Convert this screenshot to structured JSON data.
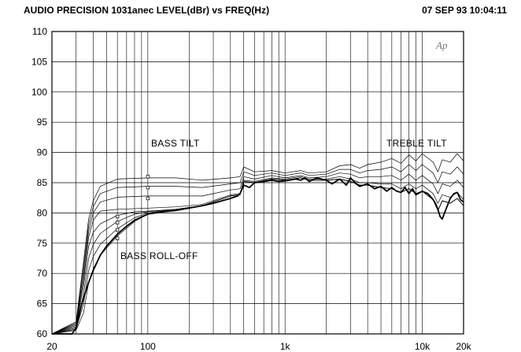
{
  "header": {
    "title": "AUDIO PRECISION 1031anec  LEVEL(dBr)  vs  FREQ(Hz)",
    "timestamp": "07 SEP 93 10:04:11"
  },
  "logo_text": "Ap",
  "chart_data": {
    "type": "line",
    "title": "AUDIO PRECISION 1031anec  LEVEL(dBr)  vs  FREQ(Hz)",
    "xlabel": "",
    "ylabel": "",
    "xscale": "log",
    "xlim": [
      20,
      20000
    ],
    "ylim": [
      60,
      110
    ],
    "grid": true,
    "x_tick_labels": [
      "20",
      "100",
      "1k",
      "10k",
      "20k"
    ],
    "y_ticks": [
      110,
      105,
      100,
      95,
      90,
      85,
      80,
      75,
      70,
      65,
      60
    ],
    "annotations": [
      {
        "text": "BASS  TILT"
      },
      {
        "text": "TREBLE  TILT"
      },
      {
        "text": "BASS  ROLL-OFF"
      }
    ],
    "series": [
      {
        "x": [
          20,
          30,
          34,
          37,
          40,
          45,
          60,
          100,
          160,
          250,
          400,
          470,
          500,
          600,
          800,
          1000,
          1300,
          1500,
          2000,
          2500,
          3000,
          3500,
          4000,
          5000,
          6000,
          7000,
          8000,
          9000,
          10000,
          12000,
          13000,
          14000,
          16000,
          18000,
          20000
        ],
        "y": [
          60,
          62,
          72,
          79,
          82,
          84.4,
          85.6,
          85.8,
          85.8,
          85.4,
          85.8,
          86,
          87.6,
          86.8,
          87,
          86.6,
          87,
          86.6,
          86.8,
          87.8,
          88,
          87.4,
          88,
          88.4,
          89,
          88.2,
          89.6,
          88.6,
          89.8,
          88.4,
          86.8,
          88.8,
          88.4,
          89.8,
          88.6
        ]
      },
      {
        "x": [
          20,
          30,
          34,
          37,
          40,
          45,
          60,
          100,
          160,
          250,
          400,
          470,
          500,
          600,
          800,
          1000,
          1300,
          1500,
          2000,
          2500,
          3000,
          3500,
          4000,
          5000,
          6000,
          7000,
          8000,
          9000,
          10000,
          12000,
          13000,
          14000,
          16000,
          18000,
          20000
        ],
        "y": [
          60,
          61.8,
          71,
          78,
          81,
          83.2,
          84.2,
          84.4,
          84.4,
          84.2,
          84.8,
          85,
          86.8,
          86.2,
          86.6,
          86.2,
          86.6,
          86.2,
          86.4,
          87.2,
          87.2,
          86.6,
          87,
          87.2,
          87.6,
          86.8,
          88,
          87,
          88,
          86.6,
          85,
          86.8,
          86.4,
          87.6,
          86.4
        ]
      },
      {
        "x": [
          20,
          30,
          34,
          37,
          40,
          45,
          60,
          100,
          160,
          250,
          400,
          470,
          500,
          600,
          800,
          1000,
          1300,
          1500,
          2000,
          2500,
          3000,
          3500,
          4000,
          5000,
          6000,
          7000,
          8000,
          9000,
          10000,
          12000,
          13000,
          14000,
          16000,
          18000,
          20000
        ],
        "y": [
          60,
          61.6,
          70,
          77,
          80,
          81.8,
          82.6,
          82.8,
          82.8,
          82.8,
          83.8,
          84,
          86,
          85.6,
          86.2,
          85.8,
          86.2,
          85.8,
          86,
          86.6,
          86.4,
          85.8,
          86,
          86,
          86.2,
          85.4,
          86.4,
          85.4,
          86.2,
          84.8,
          83.2,
          84.8,
          84.4,
          85.4,
          84.2
        ]
      },
      {
        "x": [
          20,
          30,
          34,
          37,
          40,
          45,
          60,
          100,
          160,
          250,
          400,
          470,
          500,
          600,
          800,
          1000,
          1300,
          1500,
          2000,
          2500,
          3000,
          3500,
          4000,
          5000,
          6000,
          7000,
          8000,
          9000,
          10000,
          12000,
          13000,
          14000,
          16000,
          18000,
          20000
        ],
        "y": [
          60,
          61.4,
          69,
          76,
          78.8,
          80.3,
          80.6,
          80.8,
          81,
          81.4,
          83,
          83.2,
          85.4,
          85.2,
          85.8,
          85.6,
          86,
          85.6,
          85.6,
          86,
          85.6,
          85,
          85,
          84.8,
          84.8,
          84,
          84.8,
          84,
          84.6,
          83.2,
          81.6,
          83,
          82.6,
          83.4,
          82.2
        ]
      },
      {
        "x": [
          20,
          30,
          34,
          37,
          40,
          45,
          60,
          80,
          100,
          160,
          250,
          400,
          470,
          500,
          600,
          800,
          1000,
          1300,
          1500,
          2000,
          2500,
          3000,
          3500,
          4000,
          5000,
          6000,
          7000,
          8000,
          9000,
          10000,
          12000,
          13000,
          14000,
          16000,
          18000,
          20000
        ],
        "y": [
          60,
          61.2,
          68,
          74.5,
          76.8,
          78.2,
          79.6,
          80.2,
          80.3,
          80.6,
          81.2,
          82.8,
          83,
          85.2,
          85,
          85.6,
          85.4,
          85.8,
          85.4,
          85.4,
          85.6,
          85.2,
          84.6,
          84.6,
          84.2,
          84,
          83.4,
          84,
          83.2,
          83.6,
          82.2,
          80.4,
          82,
          81.6,
          82.4,
          81.2
        ]
      },
      {
        "x": [
          20,
          30,
          34,
          37,
          40,
          45,
          60,
          80,
          100,
          160,
          250,
          400,
          470,
          500,
          600,
          800,
          1000,
          1300,
          1500,
          2000,
          2500,
          3000,
          3500,
          4000,
          5000,
          6000,
          7000,
          8000,
          9000,
          10000,
          12000,
          13000,
          14000,
          16000,
          18000,
          20000
        ],
        "y": [
          60,
          61,
          66.5,
          72.5,
          74.8,
          76.6,
          78.6,
          79.8,
          80.2,
          80.6,
          81.2,
          82.8,
          83,
          85.2,
          85,
          85.6,
          85.4,
          85.8,
          85.4,
          85.4,
          85.6,
          85.2,
          84.6,
          84.6,
          84.2,
          84,
          83.4,
          84,
          83.2,
          83.6,
          82.2,
          80.4,
          82,
          81.6,
          82.4,
          81.2
        ]
      },
      {
        "x": [
          20,
          30,
          34,
          37,
          40,
          45,
          60,
          80,
          100,
          160,
          250,
          400,
          470,
          500,
          600,
          800,
          1000,
          1300,
          1500,
          2000,
          2500,
          3000,
          3500,
          4000,
          5000,
          6000,
          7000,
          8000,
          9000,
          10000,
          12000,
          13000,
          14000,
          16000,
          18000,
          20000
        ],
        "y": [
          60,
          60.8,
          65,
          70.5,
          72.8,
          74.8,
          77.4,
          79.2,
          80,
          80.6,
          81.2,
          82.8,
          83,
          85.2,
          85,
          85.6,
          85.4,
          85.8,
          85.4,
          85.4,
          85.6,
          85.2,
          84.6,
          84.6,
          84.2,
          84,
          83.4,
          84,
          83.2,
          83.6,
          82.2,
          80.4,
          82,
          81.6,
          82.4,
          81.2
        ]
      },
      {
        "x": [
          20,
          30,
          34,
          37,
          40,
          45,
          60,
          80,
          100,
          160,
          250,
          400,
          470,
          500,
          600,
          800,
          1000,
          1300,
          1500,
          2000,
          2500,
          3000,
          3500,
          4000,
          5000,
          6000,
          7000,
          8000,
          9000,
          10000,
          12000,
          13000,
          14000,
          16000,
          18000,
          20000
        ],
        "y": [
          60,
          60.6,
          63.5,
          68.5,
          70.8,
          73,
          76.2,
          78.6,
          79.8,
          80.6,
          81.2,
          82.8,
          83,
          85.2,
          85,
          85.6,
          85.4,
          85.8,
          85.4,
          85.4,
          85.6,
          85.2,
          84.6,
          84.6,
          84.2,
          84,
          83.4,
          84,
          83.2,
          83.6,
          82.2,
          80.4,
          82,
          81.6,
          82.4,
          81.2
        ]
      },
      {
        "x": [
          20,
          28,
          30,
          33,
          37,
          40,
          45,
          50,
          60,
          70,
          80,
          100,
          130,
          160,
          200,
          250,
          300,
          400,
          450,
          470,
          500,
          550,
          600,
          700,
          800,
          900,
          1000,
          1200,
          1300,
          1400,
          1500,
          1700,
          2000,
          2200,
          2500,
          2800,
          3000,
          3300,
          3500,
          4000,
          4500,
          5000,
          5500,
          6000,
          6500,
          7000,
          7500,
          8000,
          8500,
          9000,
          10000,
          11000,
          12000,
          12500,
          13000,
          13500,
          14000,
          15000,
          16000,
          17000,
          18000,
          19000,
          20000
        ],
        "y": [
          60,
          60,
          61,
          65,
          68.5,
          70.5,
          73,
          74.5,
          76.5,
          77.8,
          78.8,
          79.8,
          80.2,
          80.4,
          80.8,
          81.2,
          81.6,
          82.4,
          82.8,
          83.2,
          84.6,
          84.2,
          85,
          85.2,
          85.4,
          85.2,
          85.3,
          85.6,
          85.4,
          85.8,
          85.2,
          85.8,
          85.4,
          84.8,
          85.6,
          84.6,
          85.8,
          84.8,
          84.4,
          84.8,
          84,
          84.4,
          83.6,
          84.2,
          83.6,
          83.4,
          84.2,
          83.2,
          84,
          83,
          83.6,
          83.2,
          82.2,
          81.6,
          80.6,
          79.4,
          79,
          80.8,
          82.4,
          83.2,
          83.4,
          82.2,
          81.8
        ],
        "bold": true
      }
    ],
    "markers": [
      {
        "x": 100,
        "y": 86
      },
      {
        "x": 100,
        "y": 84.2
      },
      {
        "x": 100,
        "y": 82.4
      },
      {
        "x": 60,
        "y": 79.4
      },
      {
        "x": 60,
        "y": 78.4
      },
      {
        "x": 60,
        "y": 77.2
      },
      {
        "x": 60,
        "y": 75.8
      }
    ]
  }
}
